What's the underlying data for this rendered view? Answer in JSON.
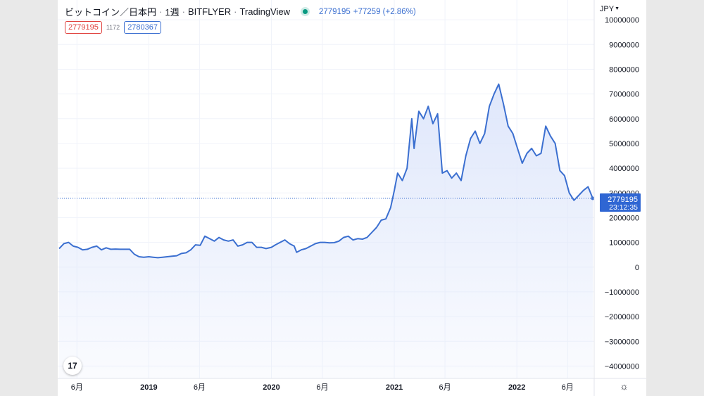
{
  "header": {
    "symbol": "ビットコイン／日本円",
    "interval": "1週",
    "exchange": "BITFLYER",
    "source": "TradingView",
    "last_price": "2779195",
    "change": "+77259 (+2.86%)",
    "separator": "·"
  },
  "badges": {
    "bid": "2779195",
    "spread": "1172",
    "ask": "2780367"
  },
  "currency_menu": "JPY",
  "price_label": {
    "value": "2779195",
    "countdown": "23:12:35"
  },
  "logo_text": "17",
  "colors": {
    "line": "#3b6fd0",
    "fill": "#dfe7fb",
    "red": "#e0413d",
    "label_bg": "#2f66d3"
  },
  "chart_data": {
    "type": "area",
    "ylim": [
      -4500000,
      10800000
    ],
    "y_ticks": [
      10000000,
      9000000,
      8000000,
      7000000,
      6000000,
      5000000,
      4000000,
      3000000,
      2000000,
      1000000,
      0,
      -1000000,
      -2000000,
      -3000000,
      -4000000
    ],
    "y_tick_labels": [
      "10000000",
      "9000000",
      "8000000",
      "7000000",
      "6000000",
      "5000000",
      "4000000",
      "3000000",
      "2000000",
      "1000000",
      "0",
      "−1000000",
      "−2000000",
      "−3000000",
      "−4000000"
    ],
    "x_range": [
      "2018-04-09",
      "2022-08-15"
    ],
    "x_ticks": [
      {
        "date": "2018-06-01",
        "label": "6月"
      },
      {
        "date": "2019-01-01",
        "label": "2019"
      },
      {
        "date": "2019-06-01",
        "label": "6月"
      },
      {
        "date": "2020-01-01",
        "label": "2020"
      },
      {
        "date": "2020-06-01",
        "label": "6月"
      },
      {
        "date": "2021-01-01",
        "label": "2021"
      },
      {
        "date": "2021-06-01",
        "label": "6月"
      },
      {
        "date": "2022-01-01",
        "label": "2022"
      },
      {
        "date": "2022-06-01",
        "label": "6月"
      }
    ],
    "series": [
      {
        "points": [
          [
            "2018-04-09",
            750000
          ],
          [
            "2018-04-23",
            950000
          ],
          [
            "2018-05-07",
            1000000
          ],
          [
            "2018-05-21",
            850000
          ],
          [
            "2018-06-04",
            800000
          ],
          [
            "2018-06-18",
            700000
          ],
          [
            "2018-07-02",
            720000
          ],
          [
            "2018-07-16",
            800000
          ],
          [
            "2018-07-30",
            850000
          ],
          [
            "2018-08-13",
            700000
          ],
          [
            "2018-08-27",
            780000
          ],
          [
            "2018-09-10",
            720000
          ],
          [
            "2018-09-24",
            730000
          ],
          [
            "2018-10-08",
            720000
          ],
          [
            "2018-10-22",
            720000
          ],
          [
            "2018-11-05",
            720000
          ],
          [
            "2018-11-19",
            520000
          ],
          [
            "2018-12-03",
            420000
          ],
          [
            "2018-12-17",
            400000
          ],
          [
            "2019-01-01",
            420000
          ],
          [
            "2019-01-14",
            400000
          ],
          [
            "2019-01-28",
            380000
          ],
          [
            "2019-02-11",
            400000
          ],
          [
            "2019-02-25",
            420000
          ],
          [
            "2019-03-11",
            440000
          ],
          [
            "2019-03-25",
            460000
          ],
          [
            "2019-04-08",
            550000
          ],
          [
            "2019-04-22",
            580000
          ],
          [
            "2019-05-06",
            700000
          ],
          [
            "2019-05-20",
            900000
          ],
          [
            "2019-06-03",
            880000
          ],
          [
            "2019-06-17",
            1250000
          ],
          [
            "2019-07-01",
            1150000
          ],
          [
            "2019-07-15",
            1050000
          ],
          [
            "2019-07-29",
            1200000
          ],
          [
            "2019-08-12",
            1100000
          ],
          [
            "2019-08-26",
            1050000
          ],
          [
            "2019-09-09",
            1100000
          ],
          [
            "2019-09-23",
            850000
          ],
          [
            "2019-10-07",
            900000
          ],
          [
            "2019-10-21",
            1000000
          ],
          [
            "2019-11-04",
            1000000
          ],
          [
            "2019-11-18",
            800000
          ],
          [
            "2019-12-02",
            800000
          ],
          [
            "2019-12-16",
            750000
          ],
          [
            "2020-01-01",
            800000
          ],
          [
            "2020-01-13",
            900000
          ],
          [
            "2020-01-27",
            1000000
          ],
          [
            "2020-02-10",
            1100000
          ],
          [
            "2020-02-24",
            950000
          ],
          [
            "2020-03-09",
            850000
          ],
          [
            "2020-03-16",
            600000
          ],
          [
            "2020-03-30",
            700000
          ],
          [
            "2020-04-13",
            750000
          ],
          [
            "2020-04-27",
            850000
          ],
          [
            "2020-05-11",
            950000
          ],
          [
            "2020-05-25",
            1000000
          ],
          [
            "2020-06-08",
            1000000
          ],
          [
            "2020-06-22",
            980000
          ],
          [
            "2020-07-06",
            990000
          ],
          [
            "2020-07-20",
            1050000
          ],
          [
            "2020-08-03",
            1200000
          ],
          [
            "2020-08-17",
            1250000
          ],
          [
            "2020-08-31",
            1100000
          ],
          [
            "2020-09-14",
            1150000
          ],
          [
            "2020-09-28",
            1130000
          ],
          [
            "2020-10-12",
            1200000
          ],
          [
            "2020-10-26",
            1400000
          ],
          [
            "2020-11-09",
            1600000
          ],
          [
            "2020-11-23",
            1900000
          ],
          [
            "2020-12-07",
            1950000
          ],
          [
            "2020-12-21",
            2400000
          ],
          [
            "2021-01-01",
            3100000
          ],
          [
            "2021-01-11",
            3800000
          ],
          [
            "2021-01-25",
            3500000
          ],
          [
            "2021-02-08",
            4000000
          ],
          [
            "2021-02-22",
            6000000
          ],
          [
            "2021-03-01",
            4800000
          ],
          [
            "2021-03-15",
            6300000
          ],
          [
            "2021-03-29",
            6000000
          ],
          [
            "2021-04-12",
            6500000
          ],
          [
            "2021-04-26",
            5800000
          ],
          [
            "2021-05-10",
            6200000
          ],
          [
            "2021-05-24",
            3800000
          ],
          [
            "2021-06-07",
            3900000
          ],
          [
            "2021-06-21",
            3600000
          ],
          [
            "2021-07-05",
            3800000
          ],
          [
            "2021-07-19",
            3500000
          ],
          [
            "2021-08-02",
            4500000
          ],
          [
            "2021-08-16",
            5200000
          ],
          [
            "2021-08-30",
            5500000
          ],
          [
            "2021-09-13",
            5000000
          ],
          [
            "2021-09-27",
            5400000
          ],
          [
            "2021-10-11",
            6500000
          ],
          [
            "2021-10-25",
            7000000
          ],
          [
            "2021-11-08",
            7400000
          ],
          [
            "2021-11-22",
            6600000
          ],
          [
            "2021-12-06",
            5700000
          ],
          [
            "2021-12-20",
            5400000
          ],
          [
            "2022-01-03",
            4800000
          ],
          [
            "2022-01-17",
            4200000
          ],
          [
            "2022-01-31",
            4600000
          ],
          [
            "2022-02-14",
            4800000
          ],
          [
            "2022-02-28",
            4500000
          ],
          [
            "2022-03-14",
            4600000
          ],
          [
            "2022-03-28",
            5700000
          ],
          [
            "2022-04-11",
            5300000
          ],
          [
            "2022-04-25",
            5000000
          ],
          [
            "2022-05-09",
            3900000
          ],
          [
            "2022-05-23",
            3700000
          ],
          [
            "2022-06-06",
            3000000
          ],
          [
            "2022-06-20",
            2700000
          ],
          [
            "2022-07-04",
            2900000
          ],
          [
            "2022-07-18",
            3100000
          ],
          [
            "2022-08-01",
            3250000
          ],
          [
            "2022-08-15",
            2779195
          ]
        ]
      }
    ]
  }
}
